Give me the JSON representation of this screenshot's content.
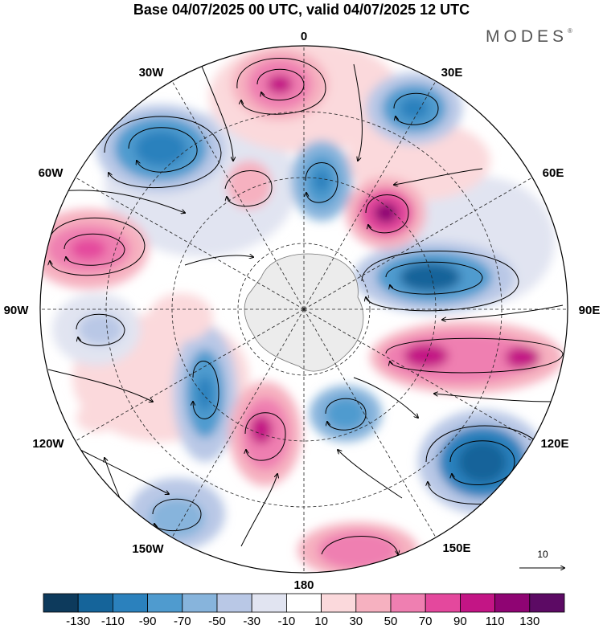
{
  "title": "Base 04/07/2025 00 UTC, valid 04/07/2025 12 UTC",
  "brand": "MODES",
  "brand_mark": "®",
  "longitude_labels": [
    "0",
    "30E",
    "60E",
    "90E",
    "120E",
    "150E",
    "180",
    "150W",
    "120W",
    "90W",
    "60W",
    "30W"
  ],
  "reference_vector": {
    "value": "10"
  },
  "colorbar": {
    "tick_labels": [
      "-130",
      "-110",
      "-90",
      "-70",
      "-50",
      "-30",
      "-10",
      "10",
      "30",
      "50",
      "70",
      "90",
      "110",
      "130"
    ],
    "colors": [
      "#0d3a5c",
      "#15649a",
      "#2b81bd",
      "#4f9bcf",
      "#87b4dc",
      "#b9c8e6",
      "#e1e4f1",
      "#ffffff",
      "#fbd9dc",
      "#f6b1c0",
      "#ef7fb1",
      "#e4489d",
      "#c31585",
      "#8f0473",
      "#5c0a64"
    ]
  }
}
